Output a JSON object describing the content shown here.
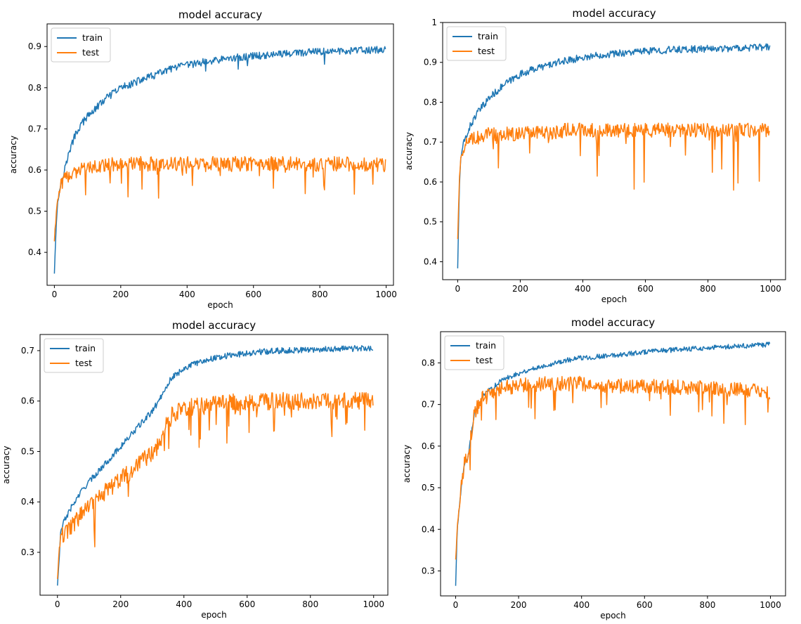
{
  "colors": {
    "train": "#1f77b4",
    "test": "#ff7f0e",
    "axes": "#000000",
    "legend_border": "#cccccc"
  },
  "chart_data": [
    {
      "type": "line",
      "title": "model accuracy",
      "xlabel": "epoch",
      "ylabel": "accuracy",
      "xlim": [
        -22,
        1022
      ],
      "ylim": [
        0.32,
        0.955
      ],
      "xticks": [
        0,
        200,
        400,
        600,
        800,
        1000
      ],
      "yticks": [
        0.4,
        0.5,
        0.6,
        0.7,
        0.8,
        0.9
      ],
      "grid": false,
      "legend": "upper-left",
      "series": [
        {
          "name": "train",
          "x": [
            0,
            5,
            10,
            20,
            30,
            40,
            60,
            80,
            100,
            150,
            200,
            250,
            300,
            350,
            400,
            450,
            500,
            550,
            600,
            650,
            700,
            750,
            800,
            850,
            900,
            950,
            999
          ],
          "values": [
            0.35,
            0.46,
            0.52,
            0.57,
            0.6,
            0.63,
            0.68,
            0.71,
            0.73,
            0.77,
            0.8,
            0.815,
            0.83,
            0.845,
            0.855,
            0.862,
            0.868,
            0.873,
            0.877,
            0.88,
            0.883,
            0.885,
            0.887,
            0.889,
            0.89,
            0.891,
            0.892
          ]
        },
        {
          "name": "test",
          "x": [
            0,
            5,
            10,
            20,
            30,
            40,
            60,
            80,
            100,
            150,
            200,
            250,
            300,
            350,
            400,
            450,
            500,
            550,
            600,
            650,
            700,
            750,
            800,
            850,
            900,
            950,
            999
          ],
          "values": [
            0.43,
            0.49,
            0.53,
            0.56,
            0.575,
            0.585,
            0.595,
            0.6,
            0.605,
            0.61,
            0.615,
            0.615,
            0.615,
            0.615,
            0.615,
            0.615,
            0.615,
            0.615,
            0.615,
            0.615,
            0.615,
            0.615,
            0.615,
            0.615,
            0.615,
            0.615,
            0.61
          ]
        }
      ]
    },
    {
      "type": "line",
      "title": "model accuracy",
      "xlabel": "epoch",
      "ylabel": "accuracy",
      "xlim": [
        -48,
        1048
      ],
      "ylim": [
        0.355,
        1.0
      ],
      "xticks": [
        0,
        200,
        400,
        600,
        800,
        1000
      ],
      "yticks": [
        0.4,
        0.5,
        0.6,
        0.7,
        0.8,
        0.9,
        1.0
      ],
      "grid": false,
      "legend": "upper-left",
      "series": [
        {
          "name": "train",
          "x": [
            0,
            5,
            10,
            20,
            30,
            40,
            60,
            80,
            100,
            150,
            200,
            250,
            300,
            350,
            400,
            450,
            500,
            550,
            600,
            650,
            700,
            750,
            800,
            850,
            900,
            950,
            999
          ],
          "values": [
            0.385,
            0.58,
            0.66,
            0.7,
            0.72,
            0.74,
            0.77,
            0.79,
            0.81,
            0.845,
            0.87,
            0.885,
            0.895,
            0.905,
            0.912,
            0.918,
            0.922,
            0.925,
            0.928,
            0.93,
            0.932,
            0.933,
            0.934,
            0.935,
            0.936,
            0.937,
            0.938
          ]
        },
        {
          "name": "test",
          "x": [
            0,
            5,
            10,
            20,
            30,
            40,
            60,
            80,
            100,
            150,
            200,
            250,
            300,
            350,
            400,
            450,
            500,
            550,
            600,
            650,
            700,
            750,
            800,
            850,
            900,
            950,
            999
          ],
          "values": [
            0.46,
            0.6,
            0.66,
            0.69,
            0.7,
            0.705,
            0.71,
            0.715,
            0.72,
            0.72,
            0.72,
            0.725,
            0.725,
            0.73,
            0.73,
            0.73,
            0.73,
            0.73,
            0.73,
            0.73,
            0.73,
            0.73,
            0.73,
            0.73,
            0.73,
            0.73,
            0.73
          ]
        }
      ]
    },
    {
      "type": "line",
      "title": "model accuracy",
      "xlabel": "epoch",
      "ylabel": "accuracy",
      "xlim": [
        -55,
        1045
      ],
      "ylim": [
        0.215,
        0.732
      ],
      "xticks": [
        0,
        200,
        400,
        600,
        800,
        1000
      ],
      "yticks": [
        0.3,
        0.4,
        0.5,
        0.6,
        0.7
      ],
      "grid": false,
      "legend": "upper-left",
      "series": [
        {
          "name": "train",
          "x": [
            0,
            5,
            10,
            20,
            40,
            60,
            80,
            100,
            150,
            200,
            250,
            300,
            320,
            340,
            360,
            380,
            400,
            450,
            500,
            550,
            600,
            650,
            700,
            750,
            800,
            850,
            900,
            950,
            999
          ],
          "values": [
            0.235,
            0.28,
            0.34,
            0.36,
            0.385,
            0.405,
            0.425,
            0.44,
            0.475,
            0.51,
            0.545,
            0.58,
            0.6,
            0.625,
            0.645,
            0.655,
            0.665,
            0.678,
            0.686,
            0.691,
            0.695,
            0.698,
            0.7,
            0.701,
            0.702,
            0.703,
            0.704,
            0.704,
            0.705
          ]
        },
        {
          "name": "test",
          "x": [
            0,
            5,
            10,
            20,
            40,
            60,
            80,
            100,
            150,
            200,
            250,
            300,
            320,
            340,
            360,
            380,
            400,
            450,
            500,
            550,
            600,
            650,
            700,
            750,
            800,
            850,
            900,
            950,
            999
          ],
          "values": [
            0.25,
            0.3,
            0.33,
            0.335,
            0.345,
            0.365,
            0.38,
            0.39,
            0.42,
            0.445,
            0.47,
            0.5,
            0.51,
            0.545,
            0.57,
            0.58,
            0.585,
            0.59,
            0.595,
            0.597,
            0.598,
            0.598,
            0.599,
            0.599,
            0.599,
            0.6,
            0.6,
            0.6,
            0.6
          ]
        }
      ]
    },
    {
      "type": "line",
      "title": "model accuracy",
      "xlabel": "epoch",
      "ylabel": "accuracy",
      "xlim": [
        -48,
        1048
      ],
      "ylim": [
        0.24,
        0.875
      ],
      "xticks": [
        0,
        200,
        400,
        600,
        800,
        1000
      ],
      "yticks": [
        0.3,
        0.4,
        0.5,
        0.6,
        0.7,
        0.8
      ],
      "grid": false,
      "legend": "upper-left",
      "series": [
        {
          "name": "train",
          "x": [
            0,
            5,
            10,
            20,
            30,
            40,
            50,
            60,
            80,
            100,
            150,
            200,
            250,
            300,
            350,
            400,
            450,
            500,
            550,
            600,
            650,
            700,
            750,
            800,
            850,
            900,
            950,
            999
          ],
          "values": [
            0.265,
            0.4,
            0.44,
            0.52,
            0.565,
            0.575,
            0.63,
            0.68,
            0.71,
            0.73,
            0.76,
            0.775,
            0.787,
            0.797,
            0.806,
            0.812,
            0.815,
            0.818,
            0.822,
            0.826,
            0.829,
            0.832,
            0.834,
            0.836,
            0.838,
            0.84,
            0.842,
            0.844
          ]
        },
        {
          "name": "test",
          "x": [
            0,
            5,
            10,
            20,
            30,
            40,
            50,
            60,
            80,
            100,
            150,
            200,
            250,
            300,
            350,
            400,
            450,
            500,
            550,
            600,
            650,
            700,
            750,
            800,
            850,
            900,
            950,
            999
          ],
          "values": [
            0.33,
            0.4,
            0.44,
            0.52,
            0.565,
            0.575,
            0.63,
            0.68,
            0.71,
            0.725,
            0.74,
            0.745,
            0.748,
            0.75,
            0.75,
            0.75,
            0.748,
            0.745,
            0.745,
            0.743,
            0.742,
            0.742,
            0.74,
            0.738,
            0.738,
            0.735,
            0.733,
            0.73
          ]
        }
      ]
    }
  ]
}
